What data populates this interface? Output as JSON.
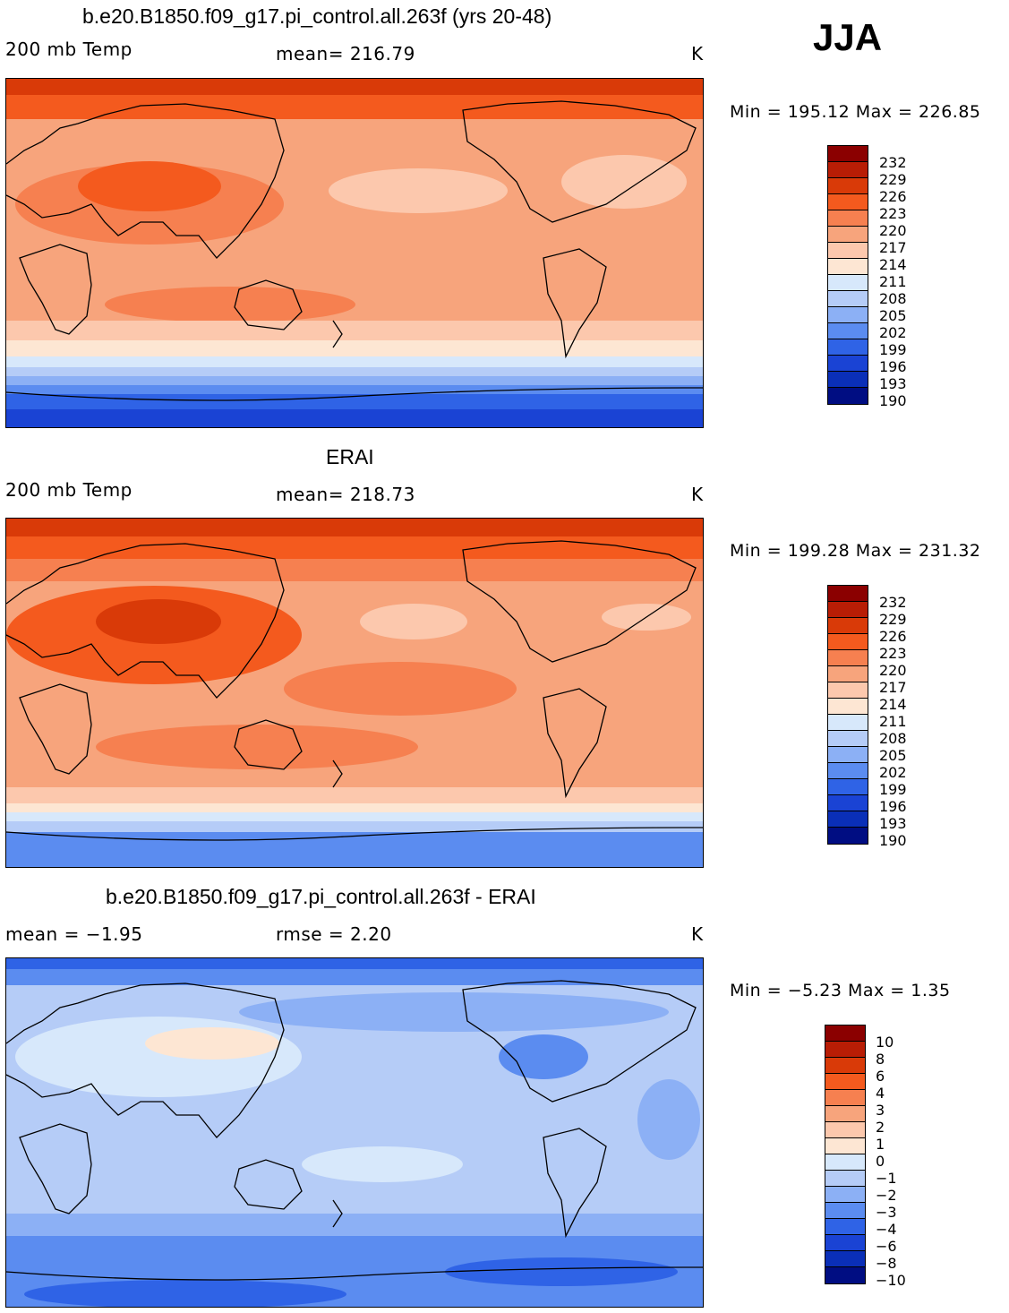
{
  "season": "JJA",
  "panels": [
    {
      "id": "model",
      "title": "b.e20.B1850.f09_g17.pi_control.all.263f (yrs 20-48)",
      "left_label": "200 mb Temp",
      "center_label": "mean= 216.79",
      "units": "K",
      "minmax": "Min = 195.12 Max = 226.85",
      "colorbar_labels": [
        "232",
        "229",
        "226",
        "223",
        "220",
        "217",
        "214",
        "211",
        "208",
        "205",
        "202",
        "199",
        "196",
        "193",
        "190"
      ]
    },
    {
      "id": "obs",
      "title": "ERAI",
      "left_label": "200 mb Temp",
      "center_label": "mean= 218.73",
      "units": "K",
      "minmax": "Min = 199.28 Max = 231.32",
      "colorbar_labels": [
        "232",
        "229",
        "226",
        "223",
        "220",
        "217",
        "214",
        "211",
        "208",
        "205",
        "202",
        "199",
        "196",
        "193",
        "190"
      ]
    },
    {
      "id": "diff",
      "title": "b.e20.B1850.f09_g17.pi_control.all.263f - ERAI",
      "left_label": "mean =   −1.95",
      "center_label": "rmse =    2.20",
      "units": "K",
      "minmax": "Min =  −5.23 Max =    1.35",
      "colorbar_labels": [
        "10",
        "8",
        "6",
        "4",
        "3",
        "2",
        "1",
        "0",
        "−1",
        "−2",
        "−3",
        "−4",
        "−6",
        "−8",
        "−10"
      ]
    }
  ],
  "colors": {
    "palette": [
      "#8b0000",
      "#b81d05",
      "#d93a08",
      "#f45a1e",
      "#f68050",
      "#f7a47c",
      "#fcc8ad",
      "#fde6d3",
      "#d7e8fb",
      "#b5ccf7",
      "#8cb0f5",
      "#5b8cf0",
      "#2f63e6",
      "#1a43d4",
      "#0a2fb8",
      "#000d82"
    ]
  }
}
